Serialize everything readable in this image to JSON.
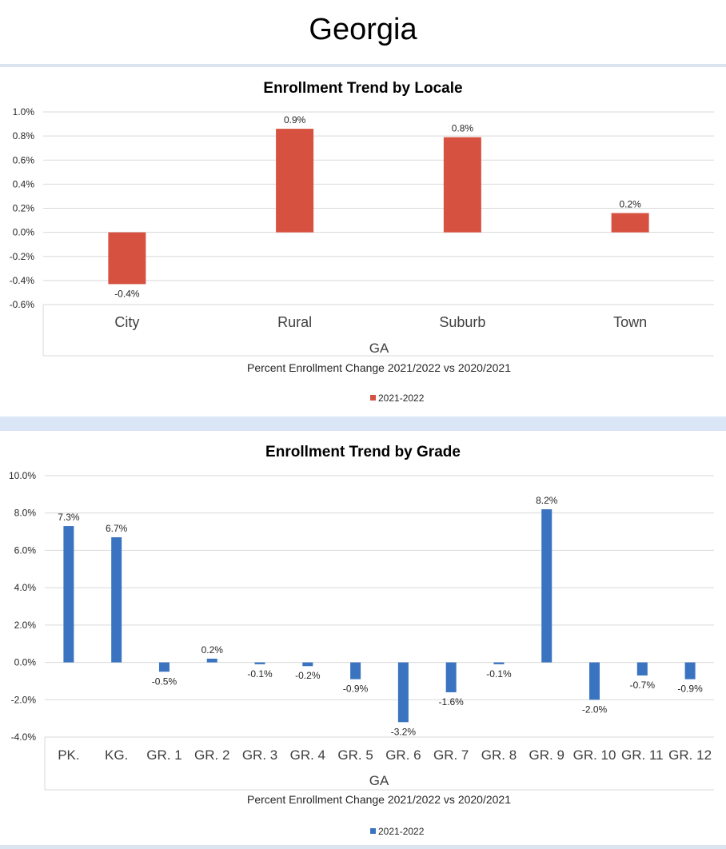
{
  "page": {
    "title": "Georgia"
  },
  "colors": {
    "locale_bar": "#d75141",
    "grade_bar": "#3a74c0",
    "gridline": "#d9d9d9",
    "band": "#dbe5f1"
  },
  "chart_data": [
    {
      "type": "bar",
      "title": "Enrollment Trend by Locale",
      "categories": [
        "City",
        "Rural",
        "Suburb",
        "Town"
      ],
      "series": [
        {
          "name": "2021-2022",
          "values": [
            -0.43,
            0.86,
            0.79,
            0.16
          ]
        }
      ],
      "data_labels": [
        "-0.4%",
        "0.9%",
        "0.8%",
        "0.2%"
      ],
      "xlabel": "GA",
      "subtitle": "Percent Enrollment Change 2021/2022 vs 2020/2021",
      "ylim": [
        -0.6,
        1.0
      ],
      "y_ticks": [
        1.0,
        0.8,
        0.6,
        0.4,
        0.2,
        0.0,
        -0.2,
        -0.4,
        -0.6
      ],
      "y_tick_labels": [
        "1.0%",
        "0.8%",
        "0.6%",
        "0.4%",
        "0.2%",
        "0.0%",
        "-0.2%",
        "-0.4%",
        "-0.6%"
      ],
      "legend": {
        "label": "2021-2022",
        "position": "bottom"
      },
      "grid": true
    },
    {
      "type": "bar",
      "title": "Enrollment Trend by Grade",
      "categories": [
        "PK.",
        "KG.",
        "GR. 1",
        "GR. 2",
        "GR. 3",
        "GR. 4",
        "GR. 5",
        "GR. 6",
        "GR. 7",
        "GR. 8",
        "GR. 9",
        "GR. 10",
        "GR. 11",
        "GR. 12"
      ],
      "series": [
        {
          "name": "2021-2022",
          "values": [
            7.3,
            6.7,
            -0.5,
            0.2,
            -0.1,
            -0.2,
            -0.9,
            -3.2,
            -1.6,
            -0.1,
            8.2,
            -2.0,
            -0.7,
            -0.9
          ]
        }
      ],
      "data_labels": [
        "7.3%",
        "6.7%",
        "-0.5%",
        "0.2%",
        "-0.1%",
        "-0.2%",
        "-0.9%",
        "-3.2%",
        "-1.6%",
        "-0.1%",
        "8.2%",
        "-2.0%",
        "-0.7%",
        "-0.9%"
      ],
      "xlabel": "GA",
      "subtitle": "Percent Enrollment Change 2021/2022 vs 2020/2021",
      "ylim": [
        -4.0,
        10.0
      ],
      "y_ticks": [
        10,
        8,
        6,
        4,
        2,
        0,
        -2,
        -4
      ],
      "y_tick_labels": [
        "10.0%",
        "8.0%",
        "6.0%",
        "4.0%",
        "2.0%",
        "0.0%",
        "-2.0%",
        "-4.0%"
      ],
      "legend": {
        "label": "2021-2022",
        "position": "bottom"
      },
      "grid": true
    }
  ]
}
